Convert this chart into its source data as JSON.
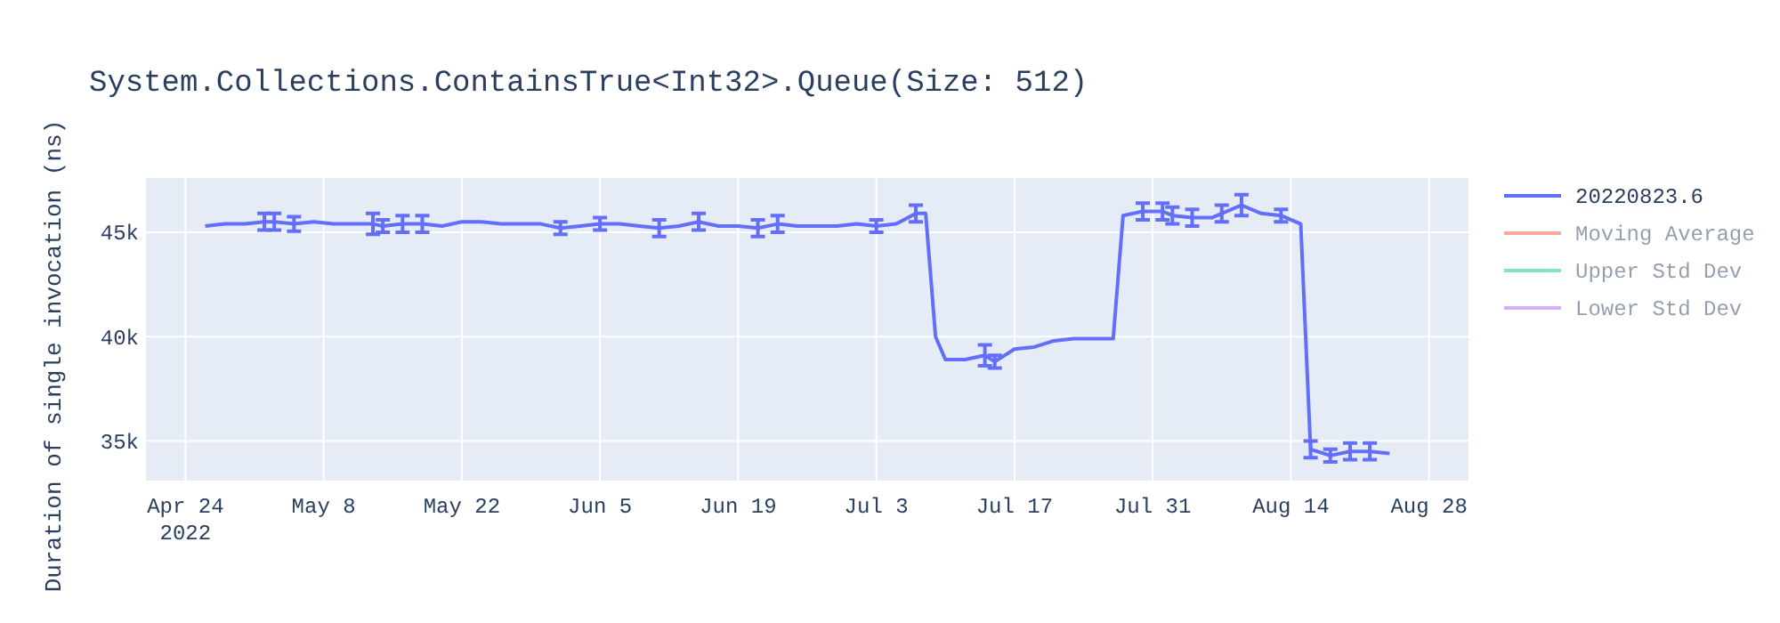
{
  "chart_data": {
    "type": "line",
    "title": "System.Collections.ContainsTrue<Int32>.Queue(Size: 512)",
    "ylabel": "Duration of single invocation (ns)",
    "x": [
      "2022-04-26",
      "2022-04-28",
      "2022-04-30",
      "2022-05-02",
      "2022-05-03",
      "2022-05-05",
      "2022-05-07",
      "2022-05-09",
      "2022-05-11",
      "2022-05-13",
      "2022-05-14",
      "2022-05-16",
      "2022-05-18",
      "2022-05-20",
      "2022-05-22",
      "2022-05-24",
      "2022-05-26",
      "2022-05-28",
      "2022-05-30",
      "2022-06-01",
      "2022-06-03",
      "2022-06-05",
      "2022-06-07",
      "2022-06-09",
      "2022-06-11",
      "2022-06-13",
      "2022-06-15",
      "2022-06-17",
      "2022-06-19",
      "2022-06-21",
      "2022-06-23",
      "2022-06-25",
      "2022-06-27",
      "2022-06-29",
      "2022-07-01",
      "2022-07-03",
      "2022-07-05",
      "2022-07-07",
      "2022-07-08",
      "2022-07-09",
      "2022-07-10",
      "2022-07-12",
      "2022-07-14",
      "2022-07-15",
      "2022-07-17",
      "2022-07-19",
      "2022-07-21",
      "2022-07-23",
      "2022-07-25",
      "2022-07-27",
      "2022-07-28",
      "2022-07-30",
      "2022-08-01",
      "2022-08-02",
      "2022-08-04",
      "2022-08-06",
      "2022-08-07",
      "2022-08-09",
      "2022-08-11",
      "2022-08-13",
      "2022-08-15",
      "2022-08-16",
      "2022-08-18",
      "2022-08-20",
      "2022-08-22",
      "2022-08-24"
    ],
    "series": [
      {
        "name": "20220823.6",
        "color": "#636efa",
        "values": [
          45300,
          45400,
          45400,
          45500,
          45500,
          45400,
          45500,
          45400,
          45400,
          45400,
          45300,
          45400,
          45400,
          45300,
          45500,
          45500,
          45400,
          45400,
          45400,
          45200,
          45300,
          45400,
          45400,
          45300,
          45200,
          45300,
          45500,
          45300,
          45300,
          45200,
          45400,
          45300,
          45300,
          45300,
          45400,
          45300,
          45400,
          45900,
          45900,
          40000,
          38900,
          38900,
          39100,
          38800,
          39400,
          39500,
          39800,
          39900,
          39900,
          39900,
          45800,
          46000,
          46000,
          45800,
          45700,
          45700,
          45900,
          46300,
          45900,
          45800,
          45400,
          34600,
          34300,
          34500,
          34500,
          34400
        ],
        "errors": [
          null,
          null,
          null,
          400,
          400,
          350,
          null,
          null,
          null,
          500,
          300,
          400,
          400,
          null,
          null,
          null,
          null,
          null,
          null,
          300,
          null,
          300,
          null,
          null,
          400,
          null,
          400,
          null,
          null,
          400,
          400,
          null,
          null,
          null,
          null,
          300,
          null,
          400,
          null,
          null,
          null,
          null,
          500,
          300,
          null,
          null,
          null,
          null,
          null,
          null,
          null,
          400,
          400,
          400,
          400,
          null,
          400,
          500,
          null,
          300,
          null,
          400,
          300,
          400,
          400,
          null
        ]
      },
      {
        "name": "Moving Average",
        "color": "#ef553b",
        "values": [
          null,
          null,
          null,
          null,
          null,
          null,
          null,
          null,
          null,
          null,
          null,
          null,
          null,
          null,
          null,
          null,
          null,
          null,
          null,
          null,
          null,
          null,
          null,
          null,
          null,
          null,
          null,
          null,
          null,
          null,
          null,
          null,
          null,
          null,
          null,
          null,
          null,
          null,
          null,
          null,
          null,
          null,
          null,
          null,
          null,
          null,
          null,
          null,
          null,
          null,
          null,
          null,
          null,
          null,
          null,
          null,
          null,
          null,
          null,
          null,
          null,
          null,
          null,
          null,
          null,
          null
        ]
      },
      {
        "name": "Upper Std Dev",
        "color": "#00cc96",
        "values": [
          null,
          null,
          null,
          null,
          null,
          null,
          null,
          null,
          null,
          null,
          null,
          null,
          null,
          null,
          null,
          null,
          null,
          null,
          null,
          null,
          null,
          null,
          null,
          null,
          null,
          null,
          null,
          null,
          null,
          null,
          null,
          null,
          null,
          null,
          null,
          null,
          null,
          null,
          null,
          null,
          null,
          null,
          null,
          null,
          null,
          null,
          null,
          null,
          null,
          null,
          null,
          null,
          null,
          null,
          null,
          null,
          null,
          null,
          null,
          null,
          null,
          null,
          null,
          null,
          null,
          null
        ]
      },
      {
        "name": "Lower Std Dev",
        "color": "#ab63fa",
        "values": [
          null,
          null,
          null,
          null,
          null,
          null,
          null,
          null,
          null,
          null,
          null,
          null,
          null,
          null,
          null,
          null,
          null,
          null,
          null,
          null,
          null,
          null,
          null,
          null,
          null,
          null,
          null,
          null,
          null,
          null,
          null,
          null,
          null,
          null,
          null,
          null,
          null,
          null,
          null,
          null,
          null,
          null,
          null,
          null,
          null,
          null,
          null,
          null,
          null,
          null,
          null,
          null,
          null,
          null,
          null,
          null,
          null,
          null,
          null,
          null,
          null,
          null,
          null,
          null,
          null,
          null
        ]
      }
    ],
    "xlim": [
      "2022-04-20",
      "2022-09-01"
    ],
    "xticks": [
      {
        "value": "2022-04-24",
        "label": "Apr 24\n2022"
      },
      {
        "value": "2022-05-08",
        "label": "May 8"
      },
      {
        "value": "2022-05-22",
        "label": "May 22"
      },
      {
        "value": "2022-06-05",
        "label": "Jun 5"
      },
      {
        "value": "2022-06-19",
        "label": "Jun 19"
      },
      {
        "value": "2022-07-03",
        "label": "Jul 3"
      },
      {
        "value": "2022-07-17",
        "label": "Jul 17"
      },
      {
        "value": "2022-07-31",
        "label": "Jul 31"
      },
      {
        "value": "2022-08-14",
        "label": "Aug 14"
      },
      {
        "value": "2022-08-28",
        "label": "Aug 28"
      }
    ],
    "ylim": [
      33100,
      47600
    ],
    "yticks": [
      {
        "value": 35000,
        "label": "35k"
      },
      {
        "value": 40000,
        "label": "40k"
      },
      {
        "value": 45000,
        "label": "45k"
      }
    ],
    "grid": true,
    "legend": "top right",
    "marker": "none",
    "line_style": "solid"
  }
}
